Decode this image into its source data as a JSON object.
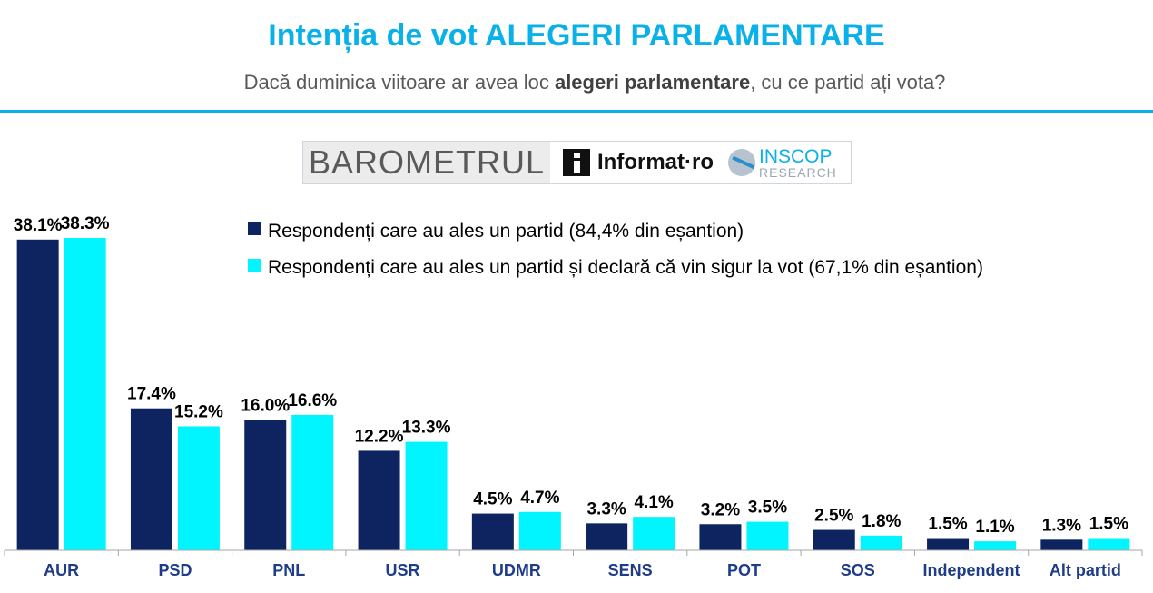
{
  "header": {
    "title": "Intenția de vot ALEGERI PARLAMENTARE",
    "subtitle_pre": "Dacă duminica viitoare ar avea loc ",
    "subtitle_bold": "alegeri parlamentare",
    "subtitle_post": ", cu ce partid ați vota?"
  },
  "logos": {
    "barometru": "BAROMETRUL",
    "informat": "Informat·ro",
    "inscop": "INSCOP",
    "inscop_sub": "RESEARCH"
  },
  "colors": {
    "accent": "#0ab0e8",
    "series1": "#0d2461",
    "series2": "#00f5ff",
    "category_text": "#1f3c8a"
  },
  "chart_data": {
    "type": "bar",
    "categories": [
      "AUR",
      "PSD",
      "PNL",
      "USR",
      "UDMR",
      "SENS",
      "POT",
      "SOS",
      "Independent",
      "Alt partid"
    ],
    "series": [
      {
        "name": "Respondenți care au ales un partid (84,4% din eșantion)",
        "values": [
          38.1,
          17.4,
          16.0,
          12.2,
          4.5,
          3.3,
          3.2,
          2.5,
          1.5,
          1.3
        ],
        "labels": [
          "38.1%",
          "17.4%",
          "16.0%",
          "12.2%",
          "4.5%",
          "3.3%",
          "3.2%",
          "2.5%",
          "1.5%",
          "1.3%"
        ],
        "color": "#0d2461"
      },
      {
        "name": "Respondenți care au ales un partid și declară că vin sigur la vot (67,1% din eșantion)",
        "values": [
          38.3,
          15.2,
          16.6,
          13.3,
          4.7,
          4.1,
          3.5,
          1.8,
          1.1,
          1.5
        ],
        "labels": [
          "38.3%",
          "15.2%",
          "16.6%",
          "13.3%",
          "4.7%",
          "4.1%",
          "3.5%",
          "1.8%",
          "1.1%",
          "1.5%"
        ],
        "color": "#00f5ff"
      }
    ],
    "title": "Intenția de vot ALEGERI PARLAMENTARE",
    "xlabel": "",
    "ylabel": "",
    "ylim": [
      0,
      40
    ],
    "grid": false,
    "legend_position": "top-right"
  }
}
